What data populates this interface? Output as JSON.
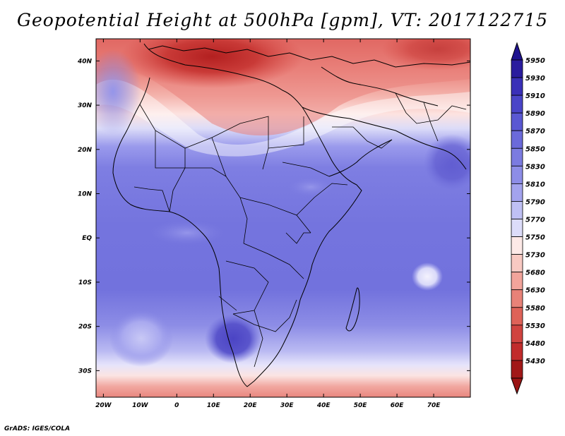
{
  "title": "Geopotential Height at 500hPa [gpm], VT: 2017122715",
  "credit": "GrADS: IGES/COLA",
  "map": {
    "lon_ticks": [
      "20W",
      "10W",
      "0",
      "10E",
      "20E",
      "30E",
      "40E",
      "50E",
      "60E",
      "70E"
    ],
    "lat_ticks": [
      "40N",
      "30N",
      "20N",
      "10N",
      "EQ",
      "10S",
      "20S",
      "30S"
    ],
    "lon_values": [
      -20,
      -10,
      0,
      10,
      20,
      30,
      40,
      50,
      60,
      70
    ],
    "lat_values": [
      40,
      30,
      20,
      10,
      0,
      -10,
      -20,
      -30
    ],
    "lon_range": [
      -22,
      80
    ],
    "lat_range": [
      -36,
      45
    ]
  },
  "legend": {
    "levels": [
      "5950",
      "5930",
      "5910",
      "5890",
      "5870",
      "5850",
      "5830",
      "5810",
      "5790",
      "5770",
      "5750",
      "5730",
      "5680",
      "5630",
      "5580",
      "5530",
      "5480",
      "5430"
    ],
    "colors": [
      "#2a1c9e",
      "#3a30b8",
      "#4a45c8",
      "#5a58d2",
      "#6b6ada",
      "#7b7be0",
      "#8d8de7",
      "#a3a3ee",
      "#bfc0f4",
      "#dcdcf9",
      "#fde9e7",
      "#f8c9c2",
      "#f2a49b",
      "#e88278",
      "#de6258",
      "#d04440",
      "#c12c2c",
      "#a11818"
    ]
  }
}
